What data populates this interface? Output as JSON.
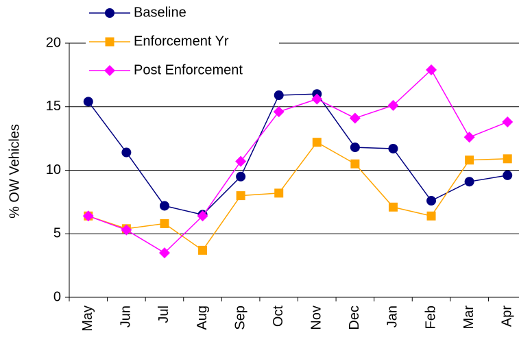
{
  "chart_data": {
    "type": "line",
    "y_label": "% OW Vehicles",
    "categories": [
      "May",
      "Jun",
      "Jul",
      "Aug",
      "Sep",
      "Oct",
      "Nov",
      "Dec",
      "Jan",
      "Feb",
      "Mar",
      "Apr"
    ],
    "series": [
      {
        "name": "Baseline",
        "color": "#000080",
        "marker": "circle",
        "values": [
          15.4,
          11.4,
          7.2,
          6.5,
          9.5,
          15.9,
          16.0,
          11.8,
          11.7,
          7.6,
          9.1,
          9.6
        ]
      },
      {
        "name": "Enforcement Yr",
        "color": "#ffa500",
        "marker": "square",
        "values": [
          6.4,
          5.4,
          5.8,
          3.7,
          8.0,
          8.2,
          12.2,
          10.5,
          7.1,
          6.4,
          10.8,
          10.9
        ]
      },
      {
        "name": "Post Enforcement",
        "color": "#ff00ff",
        "marker": "diamond",
        "values": [
          6.4,
          5.3,
          3.5,
          6.4,
          10.7,
          14.6,
          15.6,
          14.1,
          15.1,
          17.9,
          12.6,
          13.8
        ]
      }
    ],
    "ylim": [
      0,
      20
    ],
    "yticks": [
      0,
      5,
      10,
      15,
      20
    ],
    "grid": true,
    "legend": "upper left"
  }
}
